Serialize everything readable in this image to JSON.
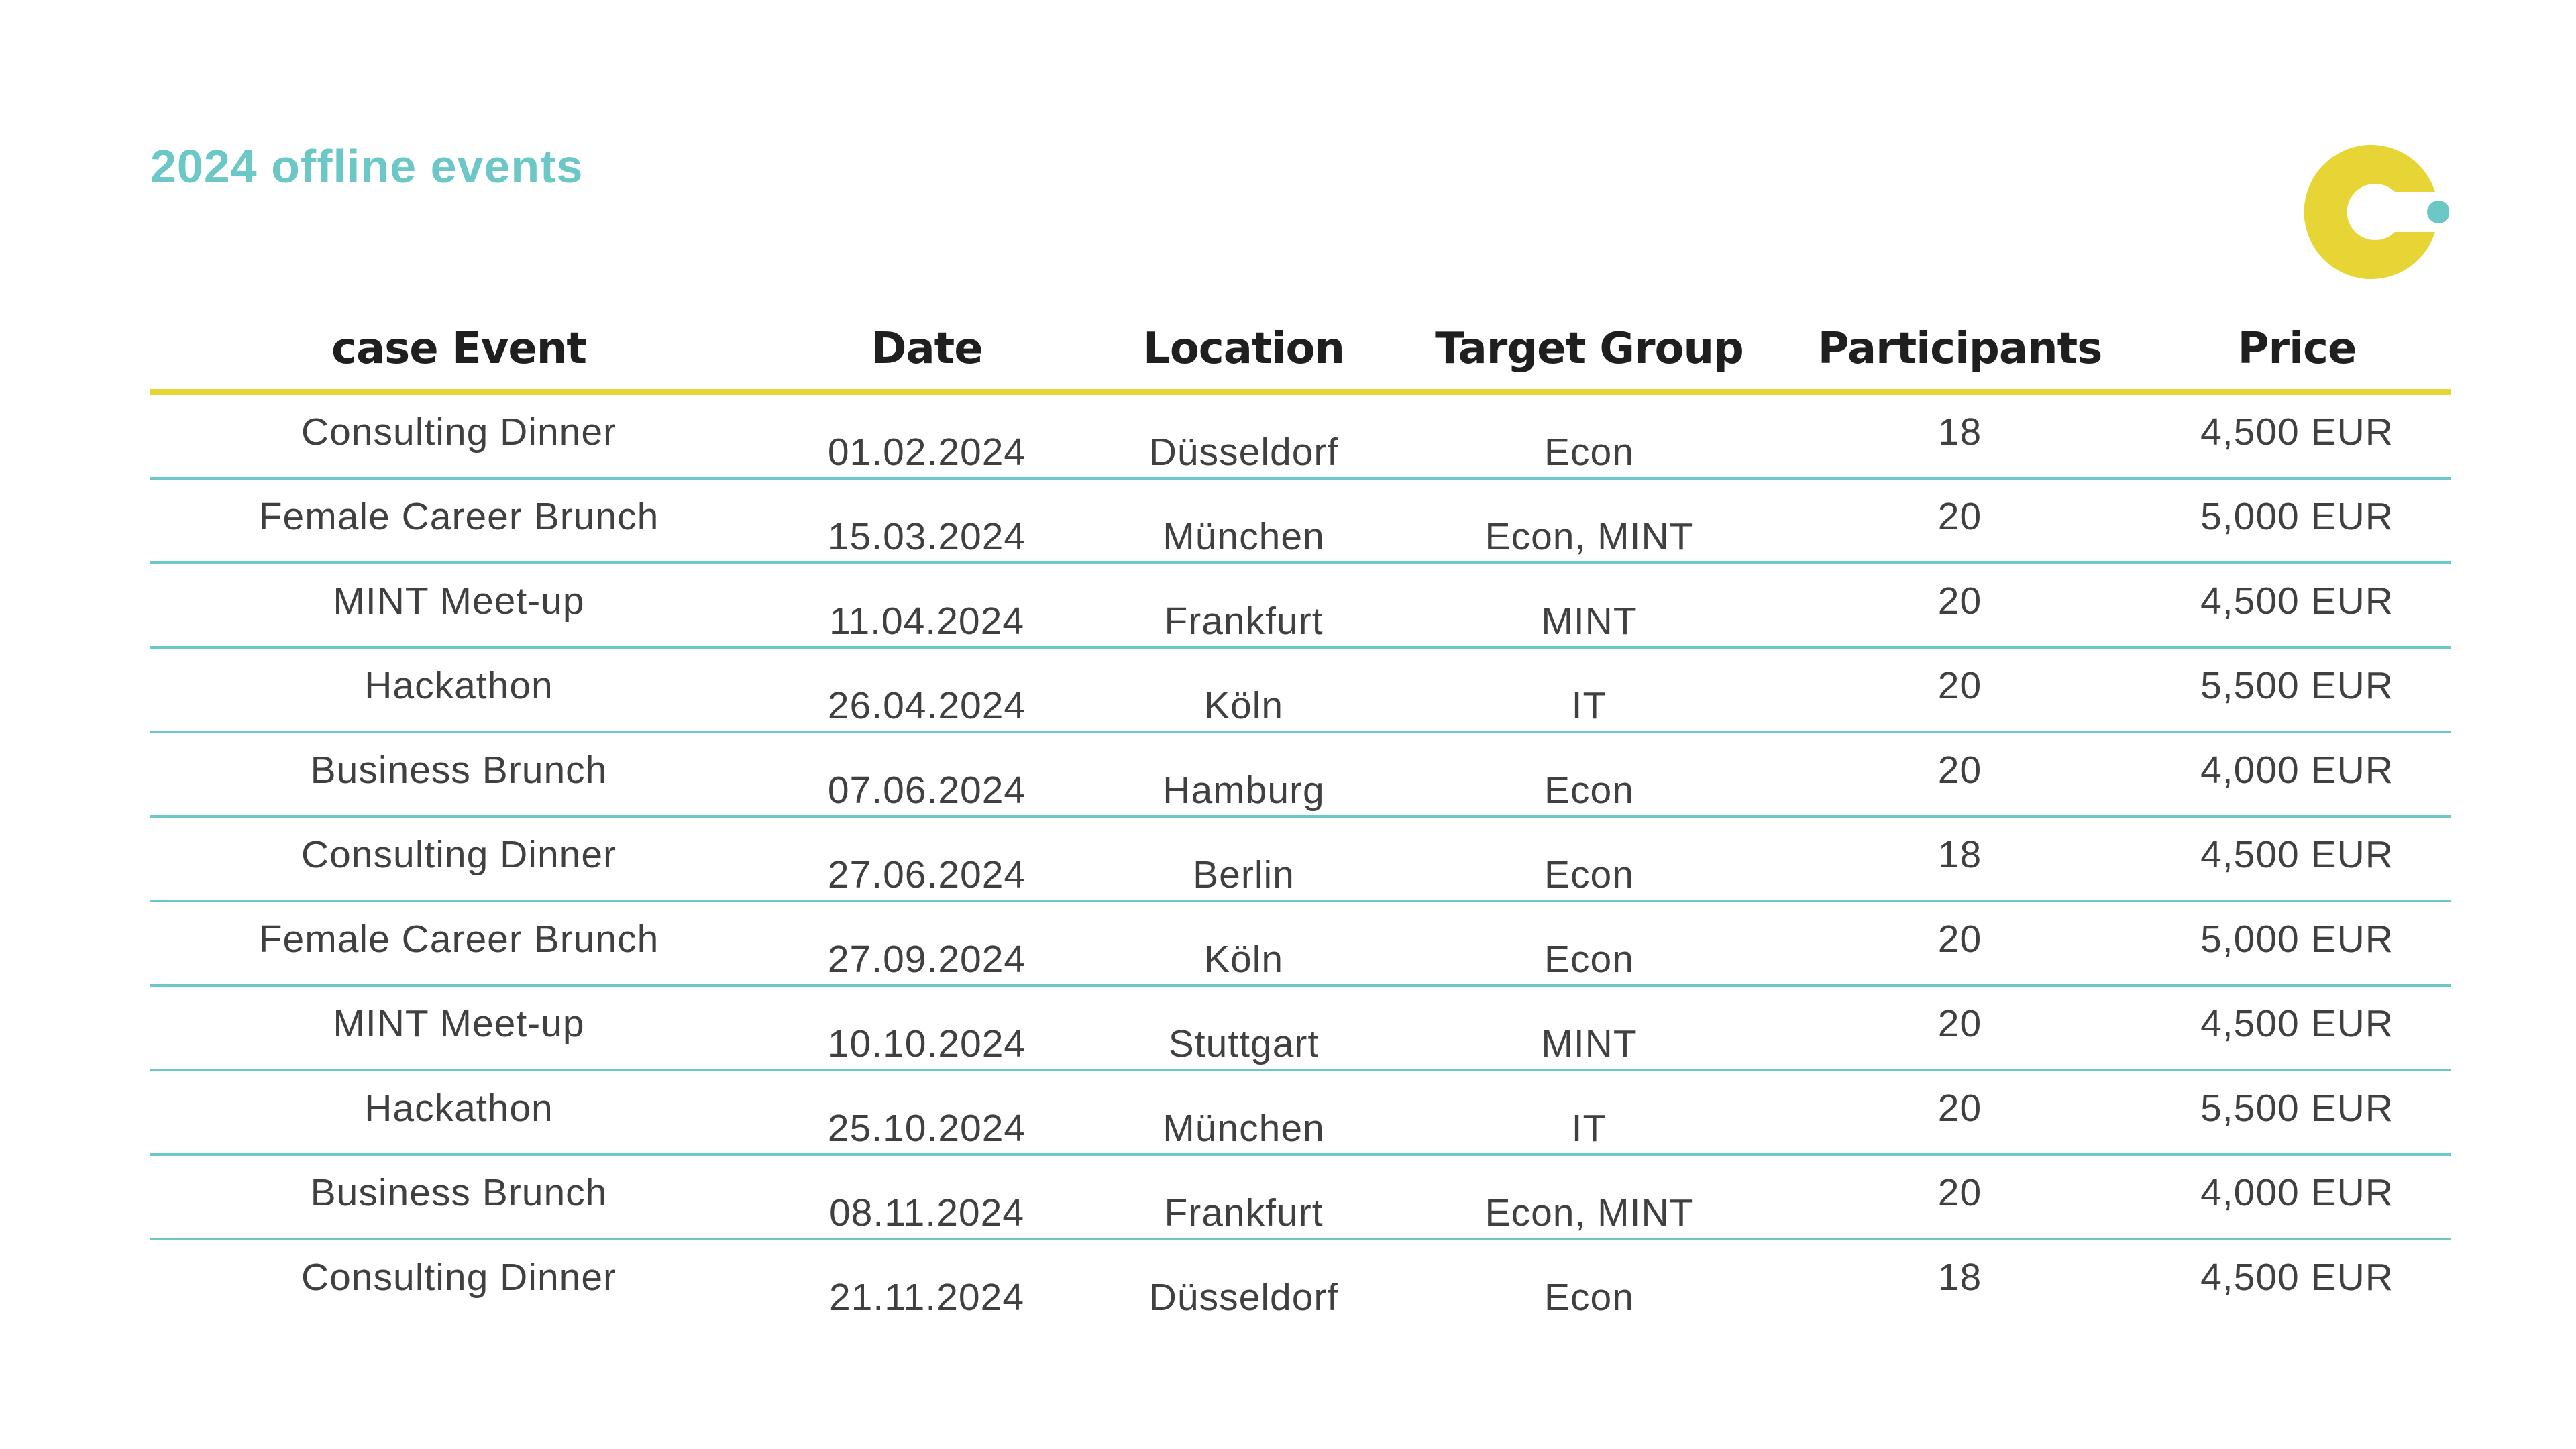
{
  "title": "2024 offline events",
  "logo": {
    "name": "c-logo",
    "colors": {
      "yellow": "#e6d534",
      "teal": "#6cc8c6"
    }
  },
  "table": {
    "headers": [
      "case Event",
      "Date",
      "Location",
      "Target Group",
      "Participants",
      "Price"
    ],
    "rows": [
      [
        "Consulting Dinner",
        "01.02.2024",
        "Düsseldorf",
        "Econ",
        "18",
        "4,500 EUR"
      ],
      [
        "Female Career Brunch",
        "15.03.2024",
        "München",
        "Econ, MINT",
        "20",
        "5,000 EUR"
      ],
      [
        "MINT Meet-up",
        "11.04.2024",
        "Frankfurt",
        "MINT",
        "20",
        "4,500 EUR"
      ],
      [
        "Hackathon",
        "26.04.2024",
        "Köln",
        "IT",
        "20",
        "5,500 EUR"
      ],
      [
        "Business Brunch",
        "07.06.2024",
        "Hamburg",
        "Econ",
        "20",
        "4,000 EUR"
      ],
      [
        "Consulting Dinner",
        "27.06.2024",
        "Berlin",
        "Econ",
        "18",
        "4,500 EUR"
      ],
      [
        "Female Career Brunch",
        "27.09.2024",
        "Köln",
        "Econ",
        "20",
        "5,000 EUR"
      ],
      [
        "MINT Meet-up",
        "10.10.2024",
        "Stuttgart",
        "MINT",
        "20",
        "4,500 EUR"
      ],
      [
        "Hackathon",
        "25.10.2024",
        "München",
        "IT",
        "20",
        "5,500 EUR"
      ],
      [
        "Business Brunch",
        "08.11.2024",
        "Frankfurt",
        "Econ, MINT",
        "20",
        "4,000 EUR"
      ],
      [
        "Consulting Dinner",
        "21.11.2024",
        "Düsseldorf",
        "Econ",
        "18",
        "4,500 EUR"
      ]
    ]
  }
}
